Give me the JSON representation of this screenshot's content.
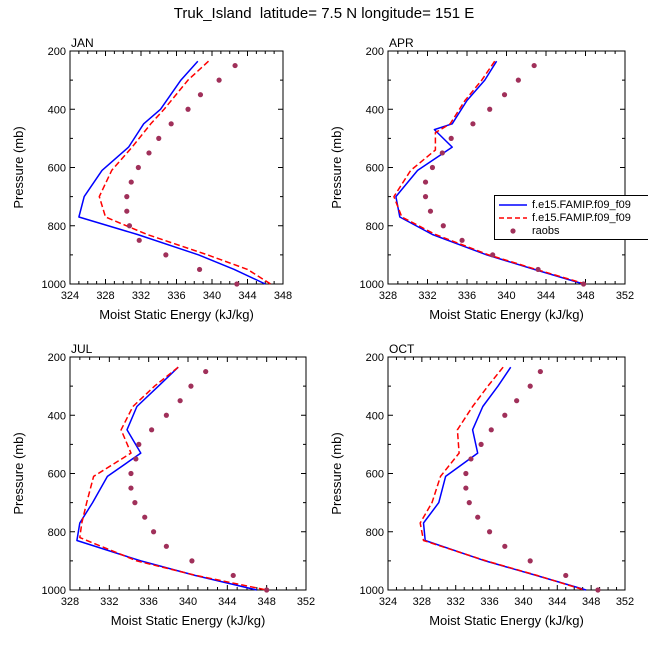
{
  "figure_title": "Truk_Island  latitude= 7.5 N longitude= 151 E",
  "colors": {
    "model_1": "#0000ff",
    "model_2": "#ff0000",
    "obs": "#a0305a",
    "axis": "#000000"
  },
  "legend": {
    "items": [
      {
        "label": "f.e15.FAMIP.f09_f09",
        "style": "solid",
        "color": "#0000ff"
      },
      {
        "label": "f.e15.FAMIP.f09_f09",
        "style": "dashed",
        "color": "#ff0000"
      },
      {
        "label": "raobs",
        "style": "dots",
        "color": "#a0305a"
      }
    ]
  },
  "chart_data": [
    {
      "type": "line",
      "title": "JAN",
      "xlabel": "Moist Static Energy (kJ/kg)",
      "ylabel": "Pressure (mb)",
      "xlim": [
        324,
        348
      ],
      "ylim": [
        200,
        1000
      ],
      "y_inverted": true,
      "xticks": [
        324,
        328,
        332,
        336,
        340,
        344,
        348
      ],
      "yticks": [
        200,
        400,
        600,
        800,
        1000
      ],
      "series": [
        {
          "style": "solid",
          "color": "#0000ff",
          "pressure": [
            235,
            300,
            400,
            450,
            530,
            610,
            700,
            770,
            830,
            900,
            950,
            1000
          ],
          "mse": [
            338.4,
            336.5,
            334.2,
            332.3,
            330.6,
            327.6,
            325.6,
            325.0,
            331.6,
            338.5,
            342.5,
            346.0
          ]
        },
        {
          "style": "dashed",
          "color": "#ff0000",
          "pressure": [
            235,
            300,
            400,
            450,
            530,
            610,
            700,
            770,
            830,
            900,
            950,
            1000
          ],
          "mse": [
            339.6,
            337.3,
            334.6,
            333.1,
            331.0,
            328.7,
            327.3,
            328.0,
            332.7,
            339.5,
            344.0,
            346.6
          ]
        },
        {
          "style": "dots",
          "color": "#a0305a",
          "pressure": [
            250,
            300,
            350,
            400,
            450,
            500,
            550,
            600,
            650,
            700,
            750,
            800,
            850,
            900,
            950,
            1000
          ],
          "mse": [
            342.6,
            340.8,
            338.7,
            337.3,
            335.4,
            334.0,
            332.9,
            331.7,
            330.9,
            330.4,
            330.4,
            330.7,
            331.8,
            334.8,
            338.6,
            342.8
          ]
        }
      ]
    },
    {
      "type": "line",
      "title": "APR",
      "xlabel": "Moist Static Energy (kJ/kg)",
      "ylabel": "Pressure (mb)",
      "xlim": [
        328,
        352
      ],
      "ylim": [
        200,
        1000
      ],
      "y_inverted": true,
      "xticks": [
        328,
        332,
        336,
        340,
        344,
        348,
        352
      ],
      "yticks": [
        200,
        400,
        600,
        800,
        1000
      ],
      "series": [
        {
          "style": "solid",
          "color": "#0000ff",
          "pressure": [
            235,
            300,
            370,
            450,
            470,
            530,
            610,
            700,
            770,
            830,
            900,
            950,
            1000
          ],
          "mse": [
            339.0,
            337.8,
            336.0,
            334.5,
            332.7,
            334.5,
            331.0,
            328.8,
            329.2,
            332.5,
            338.0,
            342.8,
            347.8
          ]
        },
        {
          "style": "dashed",
          "color": "#ff0000",
          "pressure": [
            235,
            300,
            370,
            450,
            480,
            540,
            610,
            700,
            770,
            830,
            900,
            950,
            1000
          ],
          "mse": [
            338.8,
            337.5,
            335.8,
            334.3,
            332.8,
            332.8,
            330.3,
            328.6,
            329.4,
            332.8,
            338.2,
            343.0,
            348.0
          ]
        },
        {
          "style": "dots",
          "color": "#a0305a",
          "pressure": [
            250,
            300,
            350,
            400,
            450,
            500,
            550,
            600,
            650,
            700,
            750,
            800,
            850,
            900,
            950,
            1000
          ],
          "mse": [
            342.8,
            341.2,
            339.8,
            338.3,
            336.6,
            334.4,
            333.5,
            332.5,
            331.8,
            331.8,
            332.3,
            333.6,
            335.5,
            338.6,
            343.2,
            347.8
          ]
        }
      ]
    },
    {
      "type": "line",
      "title": "JUL",
      "xlabel": "Moist Static Energy (kJ/kg)",
      "ylabel": "Pressure (mb)",
      "xlim": [
        328,
        352
      ],
      "ylim": [
        200,
        1000
      ],
      "y_inverted": true,
      "xticks": [
        328,
        332,
        336,
        340,
        344,
        348,
        352
      ],
      "yticks": [
        200,
        400,
        600,
        800,
        1000
      ],
      "series": [
        {
          "style": "solid",
          "color": "#0000ff",
          "pressure": [
            235,
            300,
            370,
            450,
            530,
            610,
            700,
            770,
            830,
            900,
            950,
            1000
          ],
          "mse": [
            339.0,
            337.0,
            334.8,
            333.8,
            335.2,
            331.8,
            330.3,
            329.0,
            328.7,
            335.2,
            340.7,
            347.0
          ]
        },
        {
          "style": "dashed",
          "color": "#ff0000",
          "pressure": [
            235,
            300,
            370,
            450,
            530,
            610,
            700,
            770,
            820,
            900,
            950,
            1000
          ],
          "mse": [
            339.0,
            336.6,
            334.4,
            333.2,
            334.2,
            330.4,
            329.7,
            329.2,
            329.0,
            334.8,
            340.8,
            348.0
          ]
        },
        {
          "style": "dots",
          "color": "#a0305a",
          "pressure": [
            250,
            300,
            350,
            400,
            450,
            500,
            550,
            600,
            650,
            700,
            750,
            800,
            850,
            900,
            950,
            1000
          ],
          "mse": [
            341.8,
            340.3,
            339.2,
            337.8,
            336.3,
            335.0,
            334.7,
            334.2,
            334.2,
            334.6,
            335.6,
            336.5,
            337.8,
            340.4,
            344.6,
            348.0
          ]
        }
      ]
    },
    {
      "type": "line",
      "title": "OCT",
      "xlabel": "Moist Static Energy (kJ/kg)",
      "ylabel": "Pressure (mb)",
      "xlim": [
        324,
        352
      ],
      "ylim": [
        200,
        1000
      ],
      "y_inverted": true,
      "xticks": [
        324,
        328,
        332,
        336,
        340,
        344,
        348,
        352
      ],
      "yticks": [
        200,
        400,
        600,
        800,
        1000
      ],
      "series": [
        {
          "style": "solid",
          "color": "#0000ff",
          "pressure": [
            235,
            300,
            370,
            450,
            530,
            610,
            700,
            770,
            830,
            900,
            950,
            1000
          ],
          "mse": [
            338.5,
            337.0,
            335.2,
            334.0,
            334.6,
            330.8,
            330.0,
            328.2,
            328.4,
            335.5,
            341.5,
            347.4
          ]
        },
        {
          "style": "dashed",
          "color": "#ff0000",
          "pressure": [
            235,
            300,
            370,
            450,
            530,
            610,
            700,
            770,
            830,
            900,
            950,
            1000
          ],
          "mse": [
            337.6,
            335.8,
            334.0,
            332.2,
            332.4,
            330.2,
            329.2,
            327.8,
            328.2,
            335.6,
            341.6,
            347.2
          ]
        },
        {
          "style": "dots",
          "color": "#a0305a",
          "pressure": [
            250,
            300,
            350,
            400,
            450,
            500,
            550,
            600,
            650,
            700,
            750,
            800,
            850,
            900,
            950,
            1000
          ],
          "mse": [
            342.0,
            340.8,
            339.2,
            337.8,
            336.2,
            335.0,
            333.8,
            333.2,
            333.2,
            333.6,
            334.6,
            336.0,
            337.8,
            340.8,
            345.0,
            348.8
          ]
        }
      ]
    }
  ]
}
